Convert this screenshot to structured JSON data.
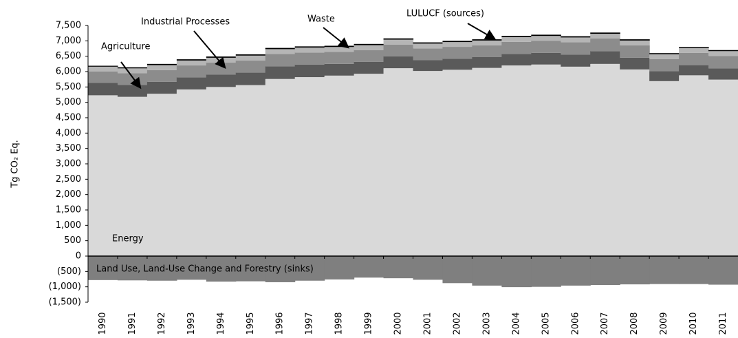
{
  "chart_data": {
    "type": "stacked-step-area",
    "y_label": "Tg CO₂ Eq.",
    "categories": [
      "1990",
      "1991",
      "1992",
      "1993",
      "1994",
      "1995",
      "1996",
      "1997",
      "1998",
      "1999",
      "2000",
      "2001",
      "2002",
      "2003",
      "2004",
      "2005",
      "2006",
      "2007",
      "2008",
      "2009",
      "2010",
      "2011"
    ],
    "series": [
      {
        "name": "Energy",
        "color": "#d9d9d9",
        "values": [
          5230,
          5180,
          5280,
          5420,
          5500,
          5560,
          5760,
          5820,
          5870,
          5930,
          6110,
          6020,
          6060,
          6120,
          6200,
          6230,
          6160,
          6250,
          6070,
          5690,
          5880,
          5740
        ]
      },
      {
        "name": "Industrial Processes",
        "color": "#5a5a5a",
        "values": [
          400,
          390,
          390,
          395,
          400,
          405,
          410,
          405,
          380,
          385,
          385,
          350,
          360,
          350,
          370,
          380,
          395,
          415,
          380,
          320,
          330,
          360
        ]
      },
      {
        "name": "Agriculture",
        "color": "#8c8c8c",
        "values": [
          370,
          375,
          380,
          385,
          390,
          395,
          400,
          395,
          390,
          385,
          385,
          385,
          385,
          385,
          395,
          395,
          400,
          410,
          405,
          400,
          400,
          410
        ]
      },
      {
        "name": "Waste",
        "color": "#b5b5b5",
        "values": [
          160,
          160,
          160,
          160,
          160,
          160,
          160,
          160,
          160,
          160,
          160,
          155,
          155,
          155,
          155,
          155,
          155,
          155,
          155,
          155,
          155,
          155
        ]
      },
      {
        "name": "LULUCF (sources)",
        "color": "#000000",
        "values": [
          30,
          35,
          40,
          40,
          40,
          40,
          40,
          40,
          40,
          40,
          40,
          40,
          40,
          40,
          40,
          40,
          40,
          40,
          40,
          35,
          35,
          35
        ]
      },
      {
        "name": "Land Use, Land-Use Change and Forestry (sinks)",
        "color": "#7f7f7f",
        "values": [
          -780,
          -790,
          -800,
          -770,
          -830,
          -820,
          -850,
          -800,
          -760,
          -700,
          -720,
          -770,
          -880,
          -960,
          -1010,
          -1000,
          -960,
          -940,
          -920,
          -910,
          -910,
          -930
        ]
      }
    ],
    "ylim": [
      -1500,
      7500
    ],
    "yticks": [
      {
        "value": -1500,
        "label": "(1,500)"
      },
      {
        "value": -1000,
        "label": "(1,000)"
      },
      {
        "value": -500,
        "label": "(500)"
      },
      0,
      500,
      {
        "value": 1000,
        "label": "1,000"
      },
      {
        "value": 1500,
        "label": "1,500"
      },
      {
        "value": 2000,
        "label": "2,000"
      },
      {
        "value": 2500,
        "label": "2,500"
      },
      {
        "value": 3000,
        "label": "3,000"
      },
      {
        "value": 3500,
        "label": "3,500"
      },
      {
        "value": 4000,
        "label": "4,000"
      },
      {
        "value": 4500,
        "label": "4,500"
      },
      {
        "value": 5000,
        "label": "5,000"
      },
      {
        "value": 5500,
        "label": "5,500"
      },
      {
        "value": 6000,
        "label": "6,000"
      },
      {
        "value": 6500,
        "label": "6,500"
      },
      {
        "value": 7000,
        "label": "7,000"
      },
      {
        "value": 7500,
        "label": "7,500"
      }
    ],
    "grid": false
  }
}
